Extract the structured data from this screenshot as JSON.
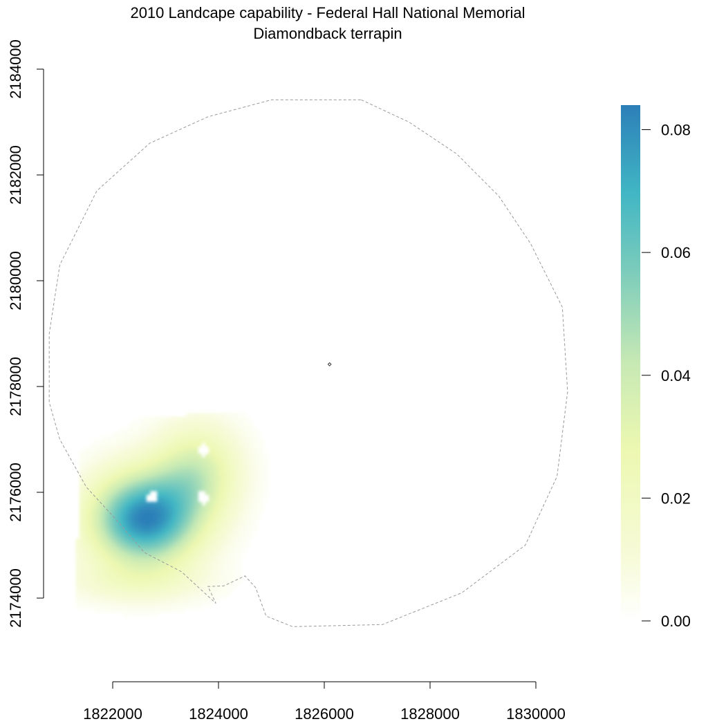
{
  "chart_data": {
    "type": "heatmap",
    "title": "2010 Landcape capability - Federal Hall National Memorial",
    "subtitle": "Diamondback terrapin",
    "x_ticks": [
      1822000,
      1824000,
      1826000,
      1828000,
      1830000
    ],
    "y_ticks": [
      2174000,
      2176000,
      2178000,
      2180000,
      2182000,
      2184000
    ],
    "xlim": [
      1822000,
      1830000
    ],
    "ylim": [
      2174000,
      2184000
    ],
    "legend": {
      "position": "right",
      "range": [
        0,
        0.084
      ],
      "ticks": [
        "0.00",
        "0.02",
        "0.04",
        "0.06",
        "0.08"
      ],
      "tick_values": [
        0,
        0.02,
        0.04,
        0.06,
        0.08
      ],
      "colors": [
        "#ffffff",
        "#f7fbd9",
        "#edf8b1",
        "#c7e9b4",
        "#7fcdbb",
        "#41b6c4",
        "#2c7fb8"
      ]
    },
    "hotspot": {
      "peak_value": 0.082,
      "center": [
        1822600,
        2175500
      ],
      "extent_x": [
        1821300,
        1825000
      ],
      "extent_y": [
        2173300,
        2177500
      ]
    },
    "boundary": [
      [
        1826700,
        2183420
      ],
      [
        1827600,
        2183000
      ],
      [
        1828500,
        2182400
      ],
      [
        1829300,
        2181600
      ],
      [
        1829900,
        2180700
      ],
      [
        1830500,
        2179500
      ],
      [
        1830600,
        2177900
      ],
      [
        1830400,
        2176300
      ],
      [
        1829800,
        2175000
      ],
      [
        1828600,
        2174100
      ],
      [
        1827100,
        2173500
      ],
      [
        1825400,
        2173460
      ],
      [
        1824900,
        2173660
      ],
      [
        1824700,
        2174200
      ],
      [
        1824500,
        2174420
      ],
      [
        1824100,
        2174230
      ],
      [
        1823800,
        2174220
      ],
      [
        1823950,
        2173900
      ],
      [
        1823300,
        2174500
      ],
      [
        1822600,
        2174860
      ],
      [
        1822050,
        2175500
      ],
      [
        1821500,
        2176100
      ],
      [
        1821000,
        2177000
      ],
      [
        1820800,
        2177700
      ],
      [
        1820800,
        2179000
      ],
      [
        1821000,
        2180300
      ],
      [
        1821700,
        2181700
      ],
      [
        1822700,
        2182600
      ],
      [
        1823800,
        2183100
      ],
      [
        1825000,
        2183420
      ],
      [
        1826700,
        2183420
      ]
    ],
    "site": [
      [
        1826100,
        2178450
      ],
      [
        1826130,
        2178420
      ],
      [
        1826100,
        2178390
      ],
      [
        1826070,
        2178420
      ]
    ]
  }
}
